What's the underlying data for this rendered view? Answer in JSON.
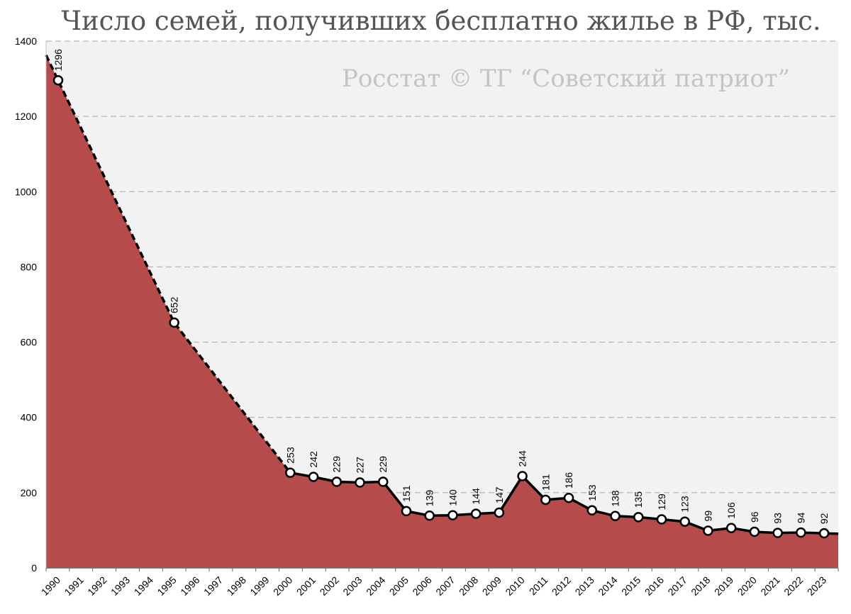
{
  "chart_data": {
    "type": "area",
    "title": "Число семей, получивших бесплатно жилье в РФ, тыс.",
    "watermark": "Росстат © ТГ “Советский патриот”",
    "xlabel": "",
    "ylabel": "",
    "ylim": [
      0,
      1400
    ],
    "yticks": [
      0,
      200,
      400,
      600,
      800,
      1000,
      1200,
      1400
    ],
    "grid": true,
    "legend": "none",
    "categories": [
      "1990",
      "1991",
      "1992",
      "1993",
      "1994",
      "1995",
      "1996",
      "1997",
      "1998",
      "1999",
      "2000",
      "2001",
      "2002",
      "2003",
      "2004",
      "2005",
      "2006",
      "2007",
      "2008",
      "2009",
      "2010",
      "2011",
      "2012",
      "2013",
      "2014",
      "2015",
      "2016",
      "2017",
      "2018",
      "2019",
      "2020",
      "2021",
      "2022",
      "2023"
    ],
    "series": [
      {
        "points": [
          {
            "x": "1990",
            "y": 1296
          },
          {
            "x": "1995",
            "y": 652
          },
          {
            "x": "2000",
            "y": 253
          },
          {
            "x": "2001",
            "y": 242
          },
          {
            "x": "2002",
            "y": 229
          },
          {
            "x": "2003",
            "y": 227
          },
          {
            "x": "2004",
            "y": 229
          },
          {
            "x": "2005",
            "y": 151
          },
          {
            "x": "2006",
            "y": 139
          },
          {
            "x": "2007",
            "y": 140
          },
          {
            "x": "2008",
            "y": 144
          },
          {
            "x": "2009",
            "y": 147
          },
          {
            "x": "2010",
            "y": 244
          },
          {
            "x": "2011",
            "y": 181
          },
          {
            "x": "2012",
            "y": 186
          },
          {
            "x": "2013",
            "y": 153
          },
          {
            "x": "2014",
            "y": 138
          },
          {
            "x": "2015",
            "y": 135
          },
          {
            "x": "2016",
            "y": 129
          },
          {
            "x": "2017",
            "y": 123
          },
          {
            "x": "2018",
            "y": 99
          },
          {
            "x": "2019",
            "y": 106
          },
          {
            "x": "2020",
            "y": 96
          },
          {
            "x": "2021",
            "y": 93
          },
          {
            "x": "2022",
            "y": 94
          },
          {
            "x": "2023",
            "y": 92
          }
        ]
      }
    ],
    "colors": {
      "area": "#b54c4b",
      "line": "#000000",
      "plot_background": "#f2f2f2",
      "gridline": "#a6a6a6"
    }
  }
}
